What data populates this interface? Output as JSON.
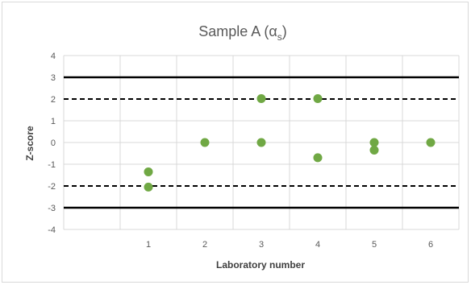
{
  "chart_data": {
    "type": "scatter",
    "title": "Sample A (α",
    "title_subscript": "s",
    "title_suffix": ")",
    "xlabel": "Laboratory number",
    "ylabel": "Z-score",
    "xlim": [
      0,
      6
    ],
    "ylim": [
      -4,
      4
    ],
    "x_ticks": [
      1,
      2,
      3,
      4,
      5,
      6
    ],
    "y_ticks": [
      4,
      3,
      2,
      1,
      0,
      -1,
      -2,
      -3,
      -4
    ],
    "grid": true,
    "legend": "none",
    "series": [
      {
        "color": "#70a844",
        "points": [
          {
            "x": 1,
            "y": -1.35
          },
          {
            "x": 1,
            "y": -2.05
          },
          {
            "x": 2,
            "y": 0
          },
          {
            "x": 3,
            "y": 2.02
          },
          {
            "x": 3,
            "y": 0
          },
          {
            "x": 4,
            "y": 2.02
          },
          {
            "x": 4,
            "y": -0.7
          },
          {
            "x": 5,
            "y": 0
          },
          {
            "x": 5,
            "y": -0.35
          },
          {
            "x": 6,
            "y": 0
          }
        ]
      }
    ],
    "reference_lines": [
      {
        "y": 3,
        "style": "solid"
      },
      {
        "y": -3,
        "style": "solid"
      },
      {
        "y": 2,
        "style": "dashed"
      },
      {
        "y": -2,
        "style": "dashed"
      }
    ],
    "colors": {
      "grid": "#d9d9d9",
      "reference": "#000000",
      "marker": "#70a844"
    }
  }
}
